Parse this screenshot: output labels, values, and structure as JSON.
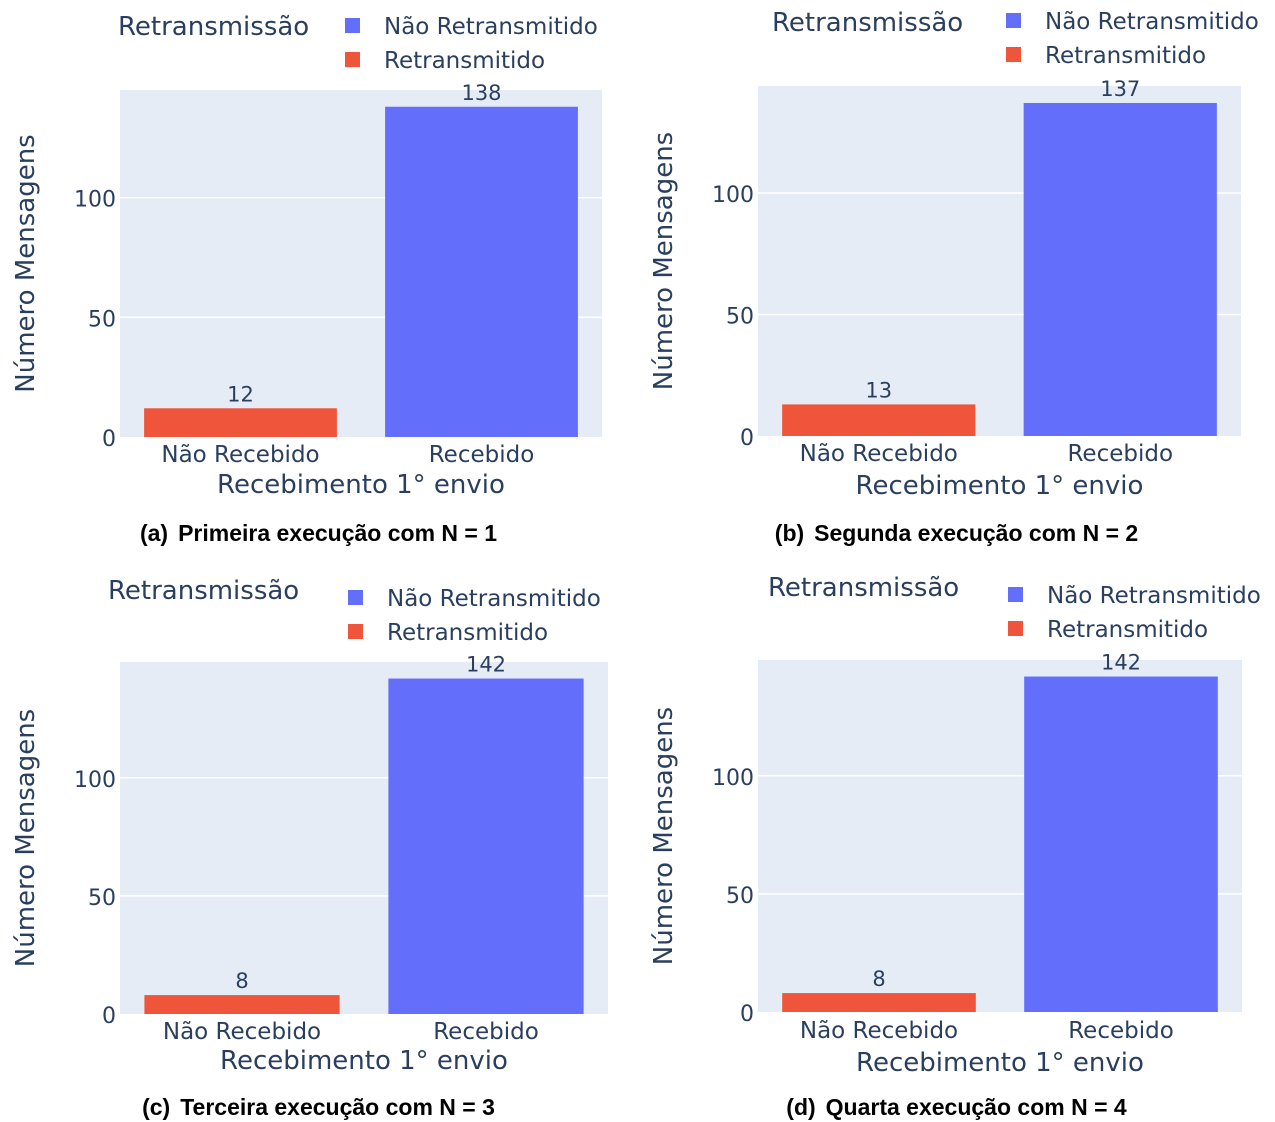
{
  "colors": {
    "not_retransmitted": "#636efa",
    "retransmitted": "#ef553b",
    "plot_background": "#e5ecf6",
    "grid": "#ffffff",
    "text": "#2a3f5f"
  },
  "chart_data": [
    {
      "type": "bar",
      "caption_label": "(a)",
      "caption": "Primeira execução com N = 1",
      "legend_title": "Retransmissão",
      "legend_placement": "top",
      "xlabel": "Recebimento 1° envio",
      "ylabel": "Número Mensagens",
      "categories": [
        "Não Recebido",
        "Recebido"
      ],
      "series": [
        {
          "name": "Não Retransmitido",
          "values": [
            0,
            138
          ]
        },
        {
          "name": "Retransmitido",
          "values": [
            12,
            0
          ]
        }
      ],
      "bars": [
        {
          "category": "Não Recebido",
          "series": "Retransmitido",
          "value": 12
        },
        {
          "category": "Recebido",
          "series": "Não Retransmitido",
          "value": 138
        }
      ],
      "ylim": [
        0,
        145
      ],
      "yticks": [
        0,
        50,
        100
      ],
      "grid": true
    },
    {
      "type": "bar",
      "caption_label": "(b)",
      "caption": "Segunda execução com N = 2",
      "legend_title": "Retransmissão",
      "legend_placement": "top",
      "xlabel": "Recebimento 1° envio",
      "ylabel": "Número Mensagens",
      "categories": [
        "Não Recebido",
        "Recebido"
      ],
      "series": [
        {
          "name": "Não Retransmitido",
          "values": [
            0,
            137
          ]
        },
        {
          "name": "Retransmitido",
          "values": [
            13,
            0
          ]
        }
      ],
      "bars": [
        {
          "category": "Não Recebido",
          "series": "Retransmitido",
          "value": 13
        },
        {
          "category": "Recebido",
          "series": "Não Retransmitido",
          "value": 137
        }
      ],
      "ylim": [
        0,
        144
      ],
      "yticks": [
        0,
        50,
        100
      ],
      "grid": true
    },
    {
      "type": "bar",
      "caption_label": "(c)",
      "caption": "Terceira execução com N = 3",
      "legend_title": "Retransmissão",
      "legend_placement": "top",
      "xlabel": "Recebimento 1° envio",
      "ylabel": "Número Mensagens",
      "categories": [
        "Não Recebido",
        "Recebido"
      ],
      "series": [
        {
          "name": "Não Retransmitido",
          "values": [
            0,
            142
          ]
        },
        {
          "name": "Retransmitido",
          "values": [
            8,
            0
          ]
        }
      ],
      "bars": [
        {
          "category": "Não Recebido",
          "series": "Retransmitido",
          "value": 8
        },
        {
          "category": "Recebido",
          "series": "Não Retransmitido",
          "value": 142
        }
      ],
      "ylim": [
        0,
        149
      ],
      "yticks": [
        0,
        50,
        100
      ],
      "grid": true
    },
    {
      "type": "bar",
      "caption_label": "(d)",
      "caption": "Quarta execução com N = 4",
      "legend_title": "Retransmissão",
      "legend_placement": "top",
      "xlabel": "Recebimento 1° envio",
      "ylabel": "Número Mensagens",
      "categories": [
        "Não Recebido",
        "Recebido"
      ],
      "series": [
        {
          "name": "Não Retransmitido",
          "values": [
            0,
            142
          ]
        },
        {
          "name": "Retransmitido",
          "values": [
            8,
            0
          ]
        }
      ],
      "bars": [
        {
          "category": "Não Recebido",
          "series": "Retransmitido",
          "value": 8
        },
        {
          "category": "Recebido",
          "series": "Não Retransmitido",
          "value": 142
        }
      ],
      "ylim": [
        0,
        149
      ],
      "yticks": [
        0,
        50,
        100
      ],
      "grid": true
    }
  ]
}
